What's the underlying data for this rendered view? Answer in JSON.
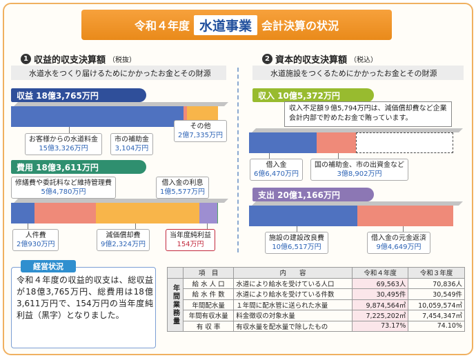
{
  "title": {
    "prefix": "令和４年度",
    "highlight": "水道事業",
    "suffix": "会計決算の状況"
  },
  "colors": {
    "accent": "#f39a2d",
    "income_tag": "#2f4f9a",
    "expense_tag": "#2f8f6f",
    "capital_income_tag": "#98bb2f",
    "capital_expense_tag": "#8c77b4",
    "seg_blue": "#4f72c0",
    "seg_salmon": "#ef8a79",
    "seg_orange": "#f8b54a",
    "seg_violet": "#9d8ed1",
    "seg_green": "#55a56b"
  },
  "revenue_section": {
    "number": "1",
    "title": "収益的収支決算額",
    "note": "（税抜）",
    "description": "水道水をつくり届けるためにかかったお金とその財源",
    "income": {
      "tag": "収益 18億3,765万円",
      "items": [
        {
          "label": "お客様からの水道料金",
          "value": "15億3,326万円",
          "amount": 153326
        },
        {
          "label": "市の補助金",
          "value": "3,104万円",
          "amount": 3104
        },
        {
          "label": "その他",
          "value": "2億7,335万円",
          "amount": 27335
        }
      ]
    },
    "expense": {
      "tag": "費用 18億3,611万円",
      "items": [
        {
          "label": "人件費",
          "value": "2億930万円",
          "amount": 20930
        },
        {
          "label": "修繕費や委託料など維持管理費",
          "value": "5億4,780万円",
          "amount": 54780
        },
        {
          "label": "減価償却費",
          "value": "9億2,324万円",
          "amount": 92324
        },
        {
          "label": "借入金の利息",
          "value": "1億5,577万円",
          "amount": 15577
        },
        {
          "label": "当年度純利益",
          "value": "154万円",
          "amount": 154
        }
      ]
    }
  },
  "capital_section": {
    "number": "2",
    "title": "資本的収支決算額",
    "note": "（税込）",
    "description": "水道施設をつくるためにかかったお金とその財源",
    "income": {
      "tag": "収入 10億5,372万円",
      "shortfall_note": "収入不足額９億5,794万円は、減価償却費など企業会計内部で貯めたお金で賄っています。",
      "items": [
        {
          "label": "借入金",
          "value": "6億6,470万円",
          "amount": 66470
        },
        {
          "label": "国の補助金、市の出資金など",
          "value": "3億8,902万円",
          "amount": 38902
        }
      ],
      "shortfall_amount": 95794
    },
    "expense": {
      "tag": "支出 20億1,166万円",
      "items": [
        {
          "label": "施設の建設改良費",
          "value": "10億6,517万円",
          "amount": 106517
        },
        {
          "label": "借入金の元金返済",
          "value": "9億4,649万円",
          "amount": 94649
        }
      ]
    }
  },
  "summary": {
    "tag": "経営状況",
    "text": "令和４年度の収益的収支は、総収益が18億3,765万円、総費用は18億3,611万円で、154万円の当年度純利益（黒字）となりました。"
  },
  "operations_table": {
    "side_label": "年間業務量",
    "headers": [
      "項　目",
      "内　　容",
      "令和４年度",
      "令和３年度"
    ],
    "rows": [
      [
        "給 水 人 口",
        "水道により給水を受けている人口",
        "69,563人",
        "70,836人"
      ],
      [
        "給 水 件 数",
        "水道により給水を受けている件数",
        "30,495件",
        "30,549件"
      ],
      [
        "年間配水量",
        "１年間に配水管に送られた水量",
        "9,874,564㎥",
        "10,059,574㎥"
      ],
      [
        "年間有収水量",
        "料金徴収の対象水量",
        "7,225,202㎥",
        "7,454,347㎥"
      ],
      [
        "有 収 率",
        "有収水量を配水量で除したもの",
        "73.17%",
        "74.10%"
      ]
    ]
  }
}
